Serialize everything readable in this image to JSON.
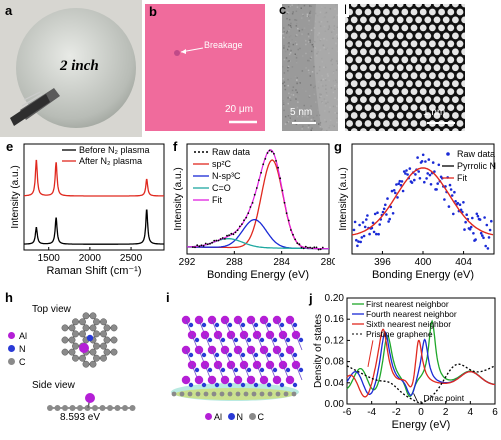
{
  "panels": {
    "a": {
      "label": "a",
      "text": "2 inch"
    },
    "b": {
      "label": "b",
      "annotation": "Breakage",
      "scalebar": "20 μm",
      "color": "#f0669a"
    },
    "c": {
      "label": "c",
      "scalebar": "5 nm"
    },
    "d": {
      "label": "d",
      "scalebar": "1 nm"
    },
    "h": {
      "label": "h",
      "top_view": "Top view",
      "side_view": "Side view",
      "legend": [
        "Al",
        "N",
        "C"
      ],
      "energy": "8.593 eV"
    },
    "i": {
      "label": "i",
      "legend": [
        "Al",
        "N",
        "C"
      ]
    }
  },
  "colors": {
    "al": "#b41fd6",
    "n": "#2a3ad6",
    "c": "#8a8a8a",
    "red": "#e0291f",
    "black": "#000000",
    "blue": "#1a2ad6",
    "green": "#1fa82a",
    "magenta": "#e020e0"
  },
  "chart_data": [
    {
      "id": "e",
      "label": "e",
      "type": "line",
      "xlabel": "Raman Shift (cm⁻¹)",
      "ylabel": "Intensity (a.u.)",
      "xlim": [
        1200,
        2900
      ],
      "xticks": [
        1500,
        2000,
        2500
      ],
      "series": [
        {
          "name": "Before N₂ plasma",
          "color": "#000000",
          "offset": 0,
          "peaks": [
            [
              1350,
              0.35
            ],
            [
              1590,
              0.55
            ],
            [
              2690,
              0.72
            ]
          ]
        },
        {
          "name": "After N₂ plasma",
          "color": "#e0291f",
          "offset": 1,
          "peaks": [
            [
              1350,
              0.75
            ],
            [
              1590,
              0.7
            ],
            [
              2690,
              0.35
            ]
          ]
        }
      ]
    },
    {
      "id": "f",
      "label": "f",
      "type": "line",
      "xlabel": "Bonding Energy (eV)",
      "ylabel": "Intensity (a.u.)",
      "xlim": [
        292,
        280
      ],
      "xticks": [
        292,
        288,
        284,
        280
      ],
      "series": [
        {
          "name": "Raw data",
          "color": "#000000",
          "style": "dotted"
        },
        {
          "name": "sp²C",
          "color": "#e0291f",
          "peak": 284.8,
          "amp": 1.0,
          "width": 0.9
        },
        {
          "name": "N-sp³C",
          "color": "#1a2ad6",
          "peak": 286.3,
          "amp": 0.32,
          "width": 1.0
        },
        {
          "name": "C=O",
          "color": "#1fa8a0",
          "peak": 288.5,
          "amp": 0.1,
          "width": 1.2
        },
        {
          "name": "Fit",
          "color": "#e020e0"
        }
      ]
    },
    {
      "id": "g",
      "label": "g",
      "type": "scatter",
      "xlabel": "Bonding Energy (eV)",
      "ylabel": "Intensity (a.u.)",
      "xlim": [
        393,
        407
      ],
      "xticks": [
        396,
        400,
        404
      ],
      "series": [
        {
          "name": "Raw data",
          "color": "#1a2ad6"
        },
        {
          "name": "Pyrrolic N",
          "color": "#000000"
        },
        {
          "name": "Fit",
          "color": "#e0291f",
          "peak": 400,
          "width": 2.6
        }
      ]
    },
    {
      "id": "j",
      "label": "j",
      "type": "line",
      "xlabel": "Energy (eV)",
      "ylabel": "Density of states",
      "xlim": [
        -6,
        6
      ],
      "ylim": [
        0,
        0.2
      ],
      "xticks": [
        -6,
        -4,
        -2,
        0,
        2,
        4,
        6
      ],
      "yticks": [
        0.0,
        0.04,
        0.08,
        0.12,
        0.16,
        0.2
      ],
      "annotation": "Dirac point",
      "series": [
        {
          "name": "First nearest neighbor",
          "color": "#1fa82a"
        },
        {
          "name": "Fourth nearest neighbor",
          "color": "#1a2ad6"
        },
        {
          "name": "Sixth nearest neighbor",
          "color": "#e0291f"
        },
        {
          "name": "Pristine graphene",
          "color": "#000000",
          "style": "dotted"
        }
      ]
    }
  ]
}
